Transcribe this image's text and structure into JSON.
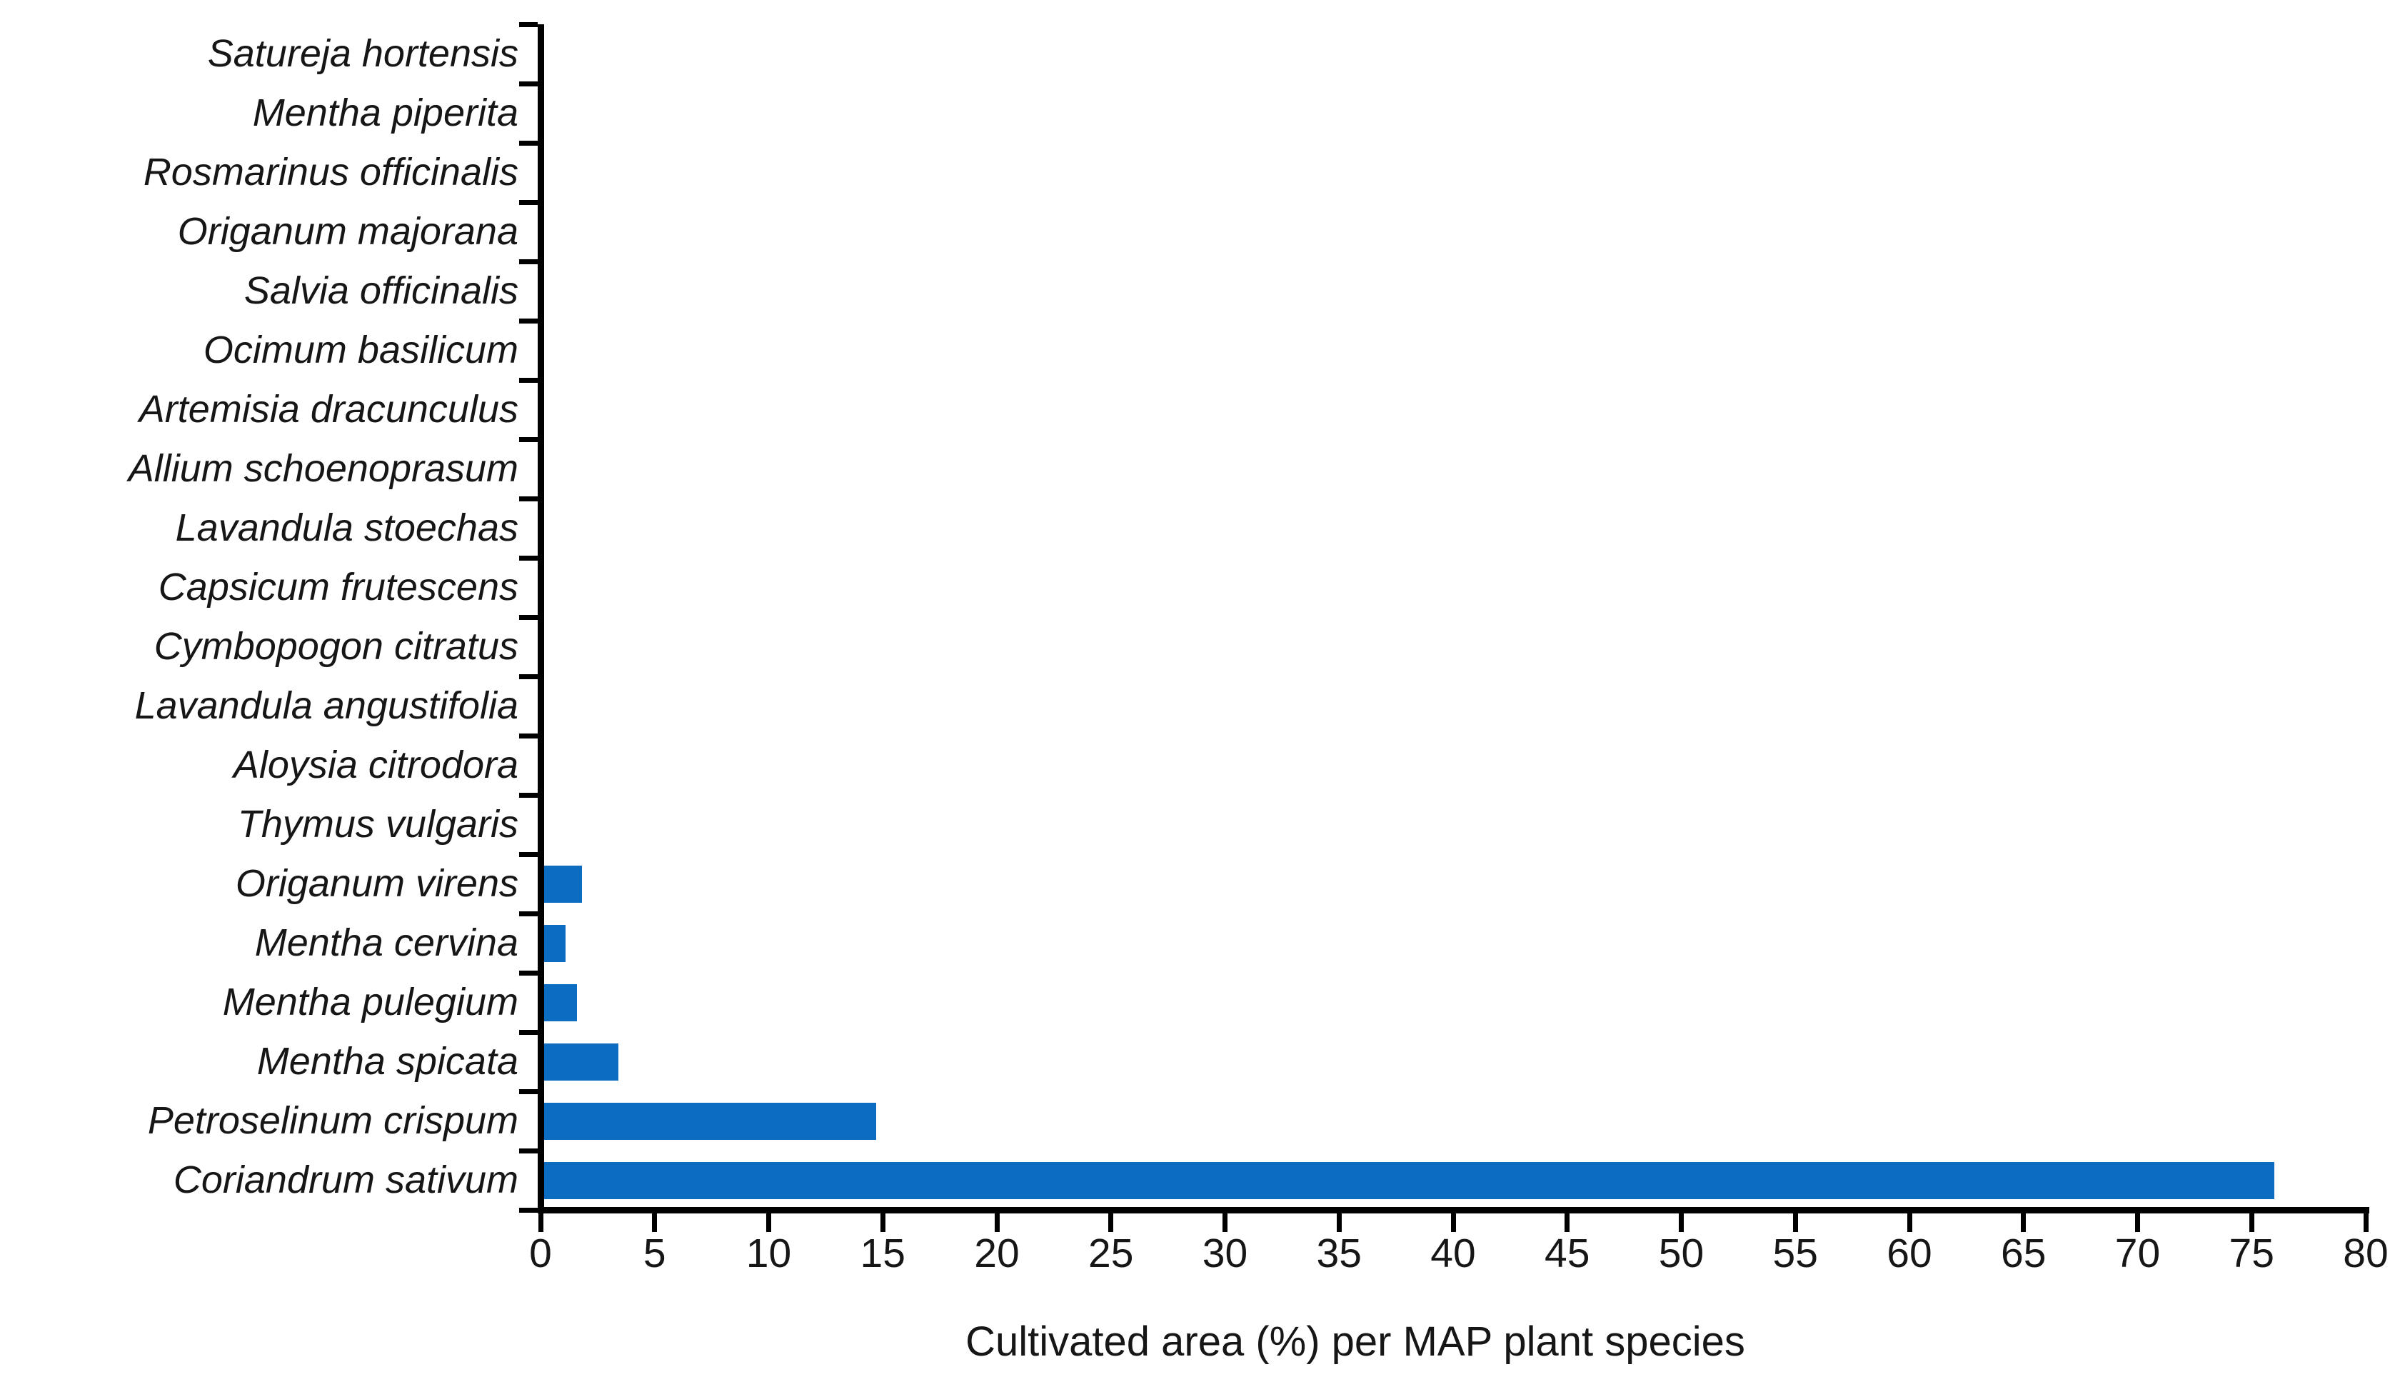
{
  "chart_data": {
    "type": "bar",
    "orientation": "horizontal",
    "title": "",
    "xlabel": "Cultivated area (%) per MAP plant species",
    "ylabel": "",
    "xlim": [
      0,
      80
    ],
    "xticks": [
      0,
      5,
      10,
      15,
      20,
      25,
      30,
      35,
      40,
      45,
      50,
      55,
      60,
      65,
      70,
      75,
      80
    ],
    "grid": false,
    "legend": false,
    "bar_color": "#0B6CC0",
    "axis_color": "#000000",
    "text_color": "#161616",
    "categories": [
      "Satureja hortensis",
      "Mentha piperita",
      "Rosmarinus officinalis",
      "Origanum majorana",
      "Salvia officinalis",
      "Ocimum basilicum",
      "Artemisia dracunculus",
      "Allium schoenoprasum",
      "Lavandula stoechas",
      "Capsicum frutescens",
      "Cymbopogon citratus",
      "Lavandula angustifolia",
      "Aloysia citrodora",
      "Thymus vulgaris",
      "Origanum virens",
      "Mentha cervina",
      "Mentha pulegium",
      "Mentha spicata",
      "Petroselinum crispum",
      "Coriandrum sativum"
    ],
    "values": [
      0,
      0,
      0,
      0,
      0,
      0,
      0,
      0,
      0,
      0,
      0,
      0,
      0,
      0,
      1.8,
      1.1,
      1.6,
      3.4,
      14.7,
      76
    ]
  }
}
